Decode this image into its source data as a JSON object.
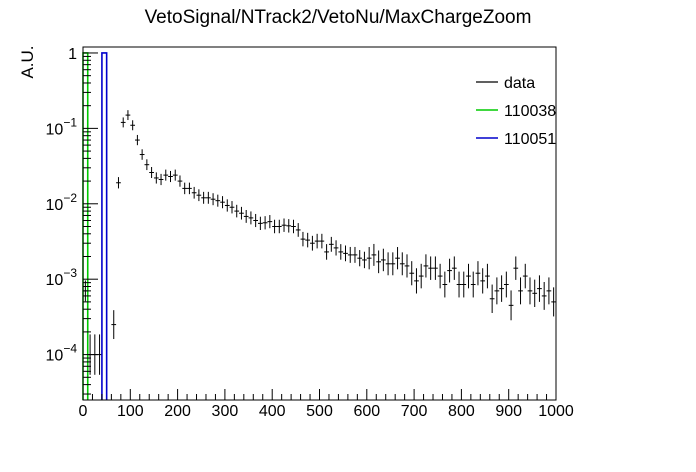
{
  "chart_data": {
    "type": "histogram",
    "title": "VetoSignal/NTrack2/VetoNu/MaxChargeZoom",
    "xlabel": "",
    "ylabel": "A.U.",
    "xlim": [
      0,
      1000
    ],
    "ylim": [
      2.5e-05,
      1.2
    ],
    "y_scale": "log",
    "grid": false,
    "legend_position": "top-right",
    "x_ticks": [
      0,
      100,
      200,
      300,
      400,
      500,
      600,
      700,
      800,
      900,
      1000
    ],
    "x_tick_labels": [
      "0",
      "100",
      "200",
      "300",
      "400",
      "500",
      "600",
      "700",
      "800",
      "900",
      "1000"
    ],
    "y_ticks": [
      0.0001,
      0.001,
      0.01,
      0.1,
      1
    ],
    "y_tick_labels": [
      {
        "base": "10",
        "exp": "−4"
      },
      {
        "base": "10",
        "exp": "−3"
      },
      {
        "base": "10",
        "exp": "−2"
      },
      {
        "base": "10",
        "exp": "−1"
      },
      {
        "base": "1",
        "exp": ""
      }
    ],
    "bin_width": 10,
    "series": [
      {
        "name": "data",
        "style": "points",
        "color": "#000000",
        "x": [
          5,
          15,
          25,
          35,
          65,
          75,
          85,
          95,
          105,
          115,
          125,
          135,
          145,
          155,
          165,
          175,
          185,
          195,
          205,
          215,
          225,
          235,
          245,
          255,
          265,
          275,
          285,
          295,
          305,
          315,
          325,
          335,
          345,
          355,
          365,
          375,
          385,
          395,
          405,
          415,
          425,
          435,
          445,
          455,
          465,
          475,
          485,
          495,
          505,
          515,
          525,
          535,
          545,
          555,
          565,
          575,
          585,
          595,
          605,
          615,
          625,
          635,
          645,
          655,
          665,
          675,
          685,
          695,
          705,
          715,
          725,
          735,
          745,
          755,
          765,
          775,
          785,
          795,
          805,
          815,
          825,
          835,
          845,
          855,
          865,
          875,
          885,
          895,
          905,
          915,
          925,
          935,
          945,
          955,
          965,
          975,
          985,
          995
        ],
        "y": [
          0.0007,
          0.0001,
          0.0001,
          0.0001,
          0.00025,
          0.019,
          0.12,
          0.15,
          0.11,
          0.07,
          0.045,
          0.033,
          0.026,
          0.022,
          0.021,
          0.024,
          0.023,
          0.024,
          0.02,
          0.016,
          0.016,
          0.014,
          0.013,
          0.012,
          0.012,
          0.0115,
          0.011,
          0.0105,
          0.0095,
          0.009,
          0.008,
          0.0075,
          0.0068,
          0.0065,
          0.006,
          0.0055,
          0.0056,
          0.0058,
          0.005,
          0.005,
          0.0052,
          0.0051,
          0.005,
          0.0045,
          0.0034,
          0.0033,
          0.003,
          0.0032,
          0.0032,
          0.0023,
          0.0029,
          0.0026,
          0.0023,
          0.0022,
          0.0021,
          0.0021,
          0.0019,
          0.0018,
          0.0019,
          0.0021,
          0.0017,
          0.0018,
          0.0016,
          0.0016,
          0.0019,
          0.0016,
          0.0015,
          0.0012,
          0.00095,
          0.0011,
          0.0015,
          0.0014,
          0.0014,
          0.0011,
          0.00085,
          0.0013,
          0.0014,
          0.00085,
          0.00085,
          0.0011,
          0.00085,
          0.0012,
          0.00095,
          0.0011,
          0.00055,
          0.0007,
          0.00075,
          0.00085,
          0.00045,
          0.0014,
          0.0007,
          0.0011,
          0.0007,
          0.00065,
          0.00075,
          0.0006,
          0.0007,
          0.0005
        ]
      },
      {
        "name": "110038",
        "style": "step",
        "color": "#00cc00",
        "edges": [
          0,
          10
        ],
        "y": [
          1.0
        ]
      },
      {
        "name": "110051",
        "style": "step",
        "color": "#0000cc",
        "edges": [
          40,
          50
        ],
        "y": [
          1.0
        ]
      }
    ]
  }
}
